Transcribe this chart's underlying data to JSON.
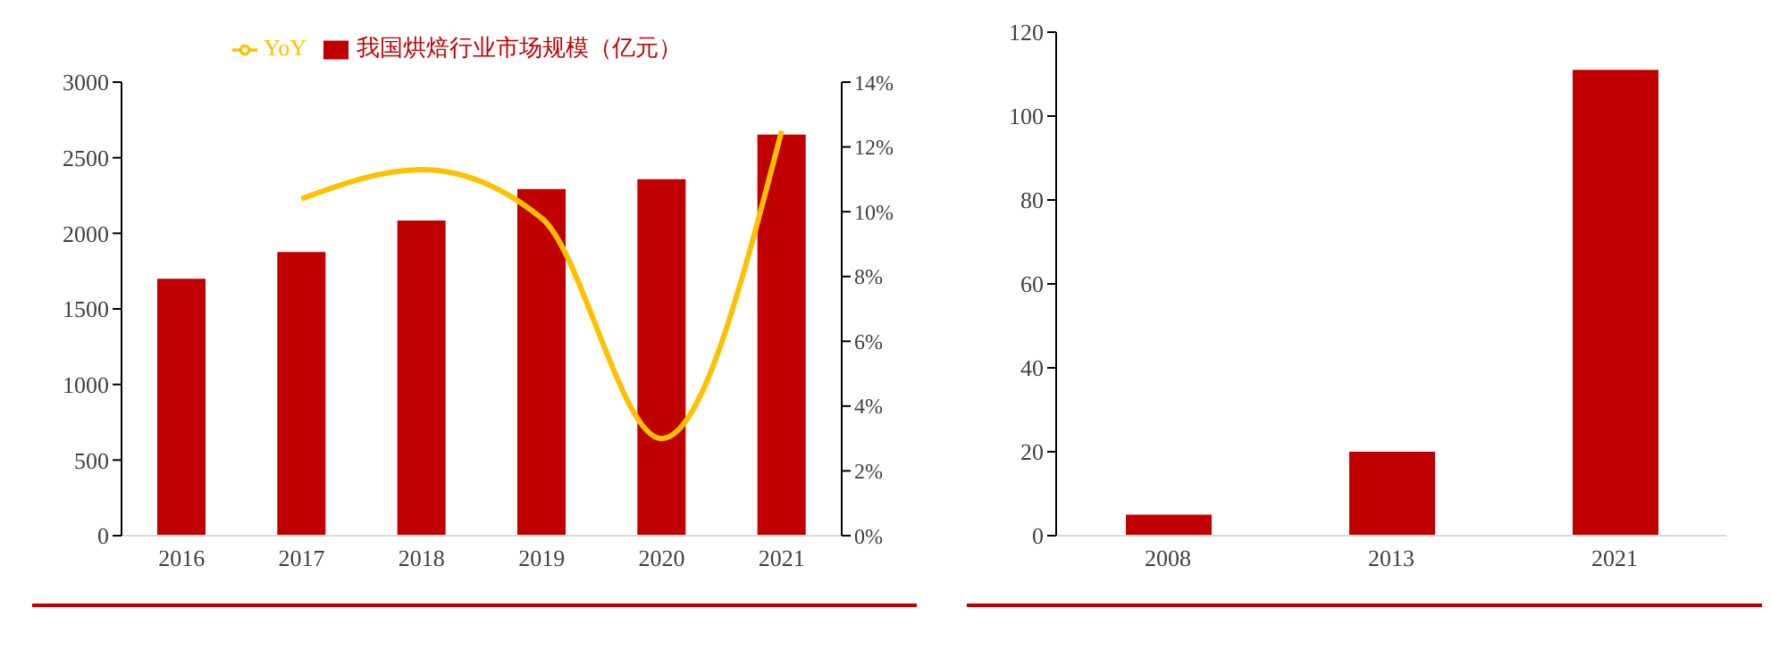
{
  "chart_data": [
    {
      "type": "bar",
      "categories": [
        "2016",
        "2017",
        "2018",
        "2019",
        "2020",
        "2021"
      ],
      "series": [
        {
          "name": "我国烘焙行业市场规模（亿元）",
          "color": "#c00000",
          "values": [
            1700,
            1876,
            2085,
            2293,
            2358,
            2653
          ]
        },
        {
          "name": "YoY",
          "type": "line",
          "axis": "y2",
          "color": "#ffc000",
          "values": [
            null,
            10.4,
            11.3,
            9.8,
            3.0,
            12.5
          ]
        }
      ],
      "ylim": [
        0,
        3000
      ],
      "yticks": [
        0,
        500,
        1000,
        1500,
        2000,
        2500,
        3000
      ],
      "y2lim": [
        0,
        14
      ],
      "y2ticks": [
        {
          "value": 0,
          "label": "0%"
        },
        {
          "value": 2,
          "label": "2%"
        },
        {
          "value": 4,
          "label": "4%"
        },
        {
          "value": 6,
          "label": "6%"
        },
        {
          "value": 8,
          "label": "8%"
        },
        {
          "value": 10,
          "label": "10%"
        },
        {
          "value": 12,
          "label": "12%"
        },
        {
          "value": 14,
          "label": "14%"
        }
      ],
      "legend": "top",
      "grid": false,
      "marker": "none"
    },
    {
      "type": "bar",
      "categories": [
        "2008",
        "2013",
        "2021"
      ],
      "series": [
        {
          "color": "#c00000",
          "values": [
            5,
            20,
            111
          ]
        }
      ],
      "ylim": [
        0,
        120
      ],
      "yticks": [
        0,
        20,
        40,
        60,
        80,
        100,
        120
      ],
      "legend": false,
      "grid": false
    }
  ]
}
